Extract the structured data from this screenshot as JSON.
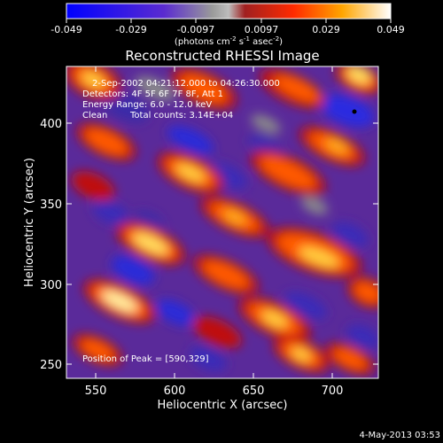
{
  "colorbar": {
    "ticks": [
      "-0.049",
      "-0.029",
      "-0.0097",
      "0.0097",
      "0.029",
      "0.049"
    ],
    "unit_main": "(photons cm",
    "unit_sup1": "-2",
    "unit_mid1": " s",
    "unit_sup2": "-1",
    "unit_mid2": " asec",
    "unit_sup3": "-2",
    "unit_end": ")"
  },
  "plot": {
    "title": "Reconstructed RHESSI Image",
    "annotations": {
      "time": "2-Sep-2002 04:21:12.000 to 04:26:30.000",
      "detectors": "Detectors: 4F 5F 6F 7F 8F, Att 1",
      "energy": "Energy Range: 6.0 - 12.0 keV",
      "clean": "Clean",
      "counts": "Total counts: 3.14E+04",
      "peak": "Position of Peak = [590,329]"
    },
    "xlabel": "Heliocentric X (arcsec)",
    "ylabel": "Heliocentric Y (arcsec)",
    "xticks": [
      "550",
      "600",
      "650",
      "700"
    ],
    "yticks": [
      "250",
      "300",
      "350",
      "400"
    ]
  },
  "footer": {
    "timestamp": "4-May-2013 03:53"
  }
}
